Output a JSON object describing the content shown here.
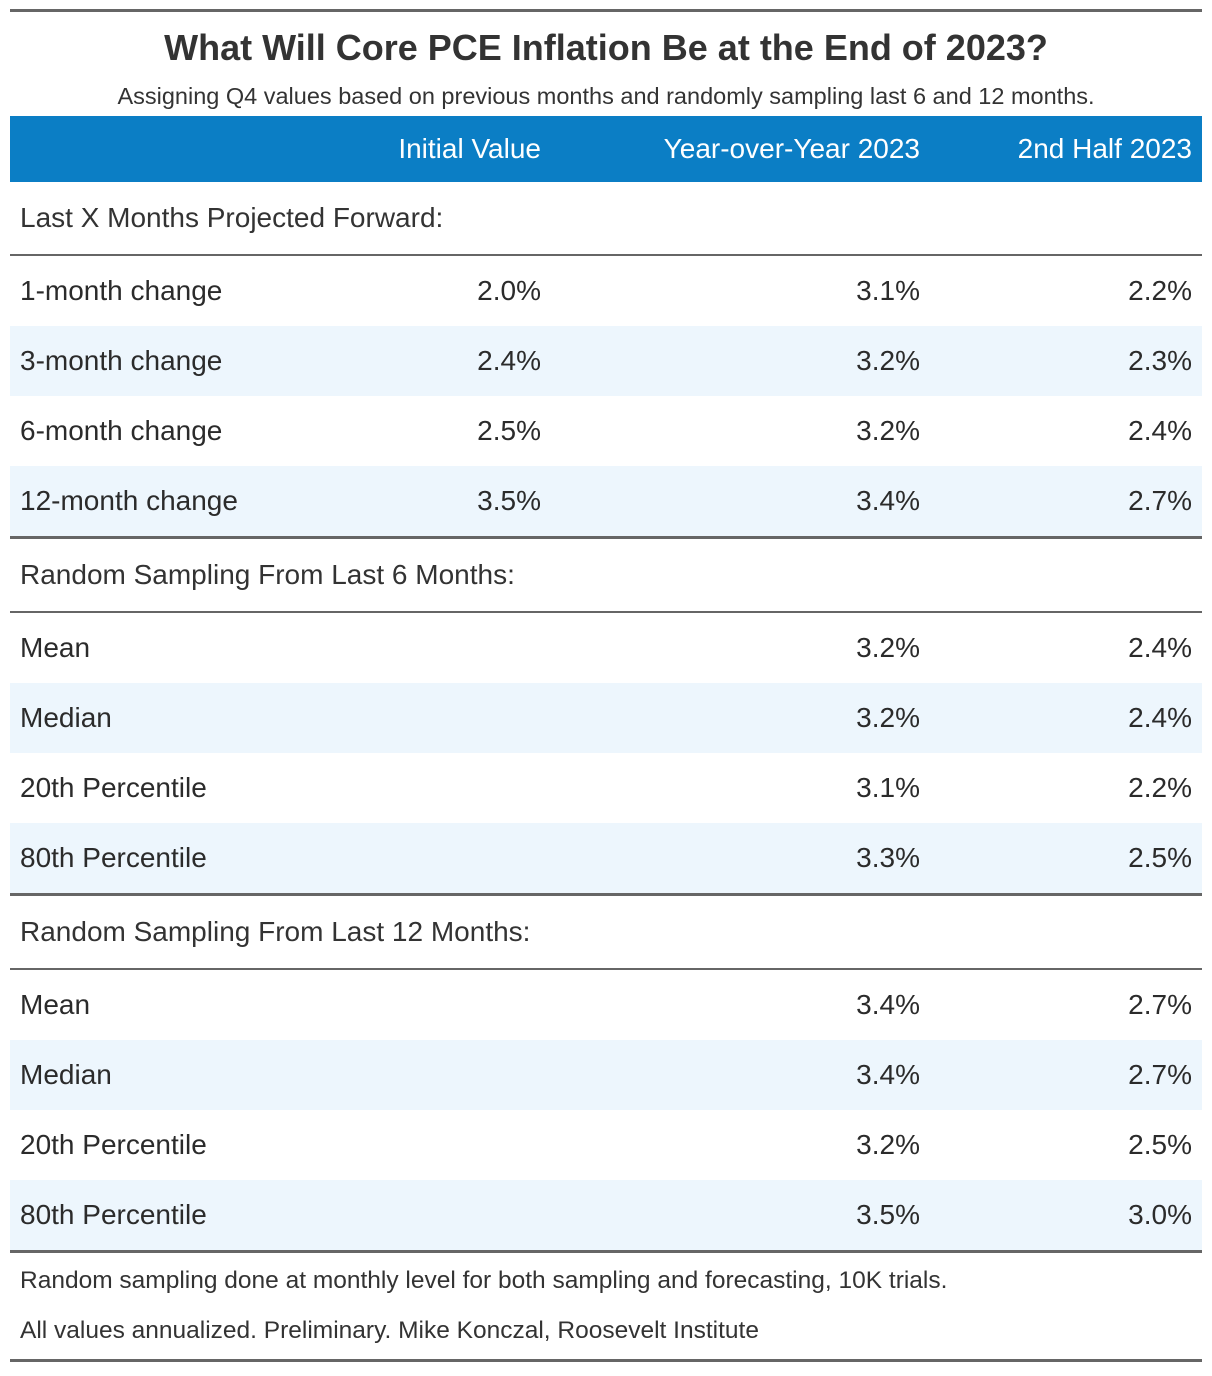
{
  "chart_data": {
    "type": "table",
    "title": "What Will Core PCE Inflation Be at the End of 2023?",
    "subtitle": "Assigning Q4 values based on previous months and randomly sampling last 6 and 12 months.",
    "columns": [
      "",
      "Initial Value",
      "Year-over-Year 2023",
      "2nd Half 2023"
    ],
    "groups": [
      {
        "label": "Last X Months Projected Forward:",
        "rows": [
          {
            "label": "1-month change",
            "initial": "2.0%",
            "yoy": "3.1%",
            "h2": "2.2%"
          },
          {
            "label": "3-month change",
            "initial": "2.4%",
            "yoy": "3.2%",
            "h2": "2.3%"
          },
          {
            "label": "6-month change",
            "initial": "2.5%",
            "yoy": "3.2%",
            "h2": "2.4%"
          },
          {
            "label": "12-month change",
            "initial": "3.5%",
            "yoy": "3.4%",
            "h2": "2.7%"
          }
        ]
      },
      {
        "label": "Random Sampling From Last 6 Months:",
        "rows": [
          {
            "label": "Mean",
            "initial": "",
            "yoy": "3.2%",
            "h2": "2.4%"
          },
          {
            "label": "Median",
            "initial": "",
            "yoy": "3.2%",
            "h2": "2.4%"
          },
          {
            "label": "20th Percentile",
            "initial": "",
            "yoy": "3.1%",
            "h2": "2.2%"
          },
          {
            "label": "80th Percentile",
            "initial": "",
            "yoy": "3.3%",
            "h2": "2.5%"
          }
        ]
      },
      {
        "label": "Random Sampling From Last 12 Months:",
        "rows": [
          {
            "label": "Mean",
            "initial": "",
            "yoy": "3.4%",
            "h2": "2.7%"
          },
          {
            "label": "Median",
            "initial": "",
            "yoy": "3.4%",
            "h2": "2.7%"
          },
          {
            "label": "20th Percentile",
            "initial": "",
            "yoy": "3.2%",
            "h2": "2.5%"
          },
          {
            "label": "80th Percentile",
            "initial": "",
            "yoy": "3.5%",
            "h2": "3.0%"
          }
        ]
      }
    ],
    "footnotes": [
      "Random sampling done at monthly level for both sampling and forecasting, 10K trials.",
      "All values annualized. Preliminary. Mike Konczal, Roosevelt Institute"
    ],
    "colors": {
      "header_background": "#0b7ec5",
      "header_text": "#ffffff",
      "stripe": "#edf6fd",
      "rules": "#666666"
    }
  }
}
